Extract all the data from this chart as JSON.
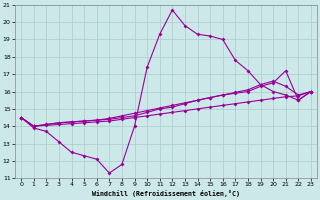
{
  "xlabel": "Windchill (Refroidissement éolien,°C)",
  "xlim": [
    -0.5,
    23.5
  ],
  "ylim": [
    11,
    21
  ],
  "xticks": [
    0,
    1,
    2,
    3,
    4,
    5,
    6,
    7,
    8,
    9,
    10,
    11,
    12,
    13,
    14,
    15,
    16,
    17,
    18,
    19,
    20,
    21,
    22,
    23
  ],
  "yticks": [
    11,
    12,
    13,
    14,
    15,
    16,
    17,
    18,
    19,
    20,
    21
  ],
  "background_color": "#cce8e8",
  "grid_color": "#aacccc",
  "line_color": "#990099",
  "line1_x": [
    0,
    1,
    2,
    3,
    4,
    5,
    6,
    7,
    8,
    9,
    10,
    11,
    12,
    13,
    14,
    15,
    16,
    17,
    18,
    19,
    20,
    21,
    22,
    23
  ],
  "line1_y": [
    14.5,
    13.9,
    13.7,
    13.1,
    12.5,
    12.3,
    12.1,
    11.3,
    11.8,
    14.0,
    17.4,
    19.3,
    20.7,
    19.8,
    19.3,
    19.2,
    19.0,
    17.8,
    17.2,
    16.4,
    16.0,
    15.8,
    15.5,
    16.0
  ],
  "line2_x": [
    0,
    1,
    2,
    3,
    4,
    5,
    6,
    7,
    8,
    9,
    10,
    11,
    12,
    13,
    14,
    15,
    16,
    17,
    18,
    19,
    20,
    21,
    22,
    23
  ],
  "line2_y": [
    14.5,
    14.0,
    14.1,
    14.2,
    14.25,
    14.3,
    14.35,
    14.4,
    14.5,
    14.6,
    14.8,
    15.0,
    15.1,
    15.3,
    15.5,
    15.65,
    15.8,
    15.9,
    16.0,
    16.3,
    16.5,
    17.2,
    15.5,
    16.0
  ],
  "line3_x": [
    0,
    1,
    2,
    3,
    4,
    5,
    6,
    7,
    8,
    9,
    10,
    11,
    12,
    13,
    14,
    15,
    16,
    17,
    18,
    19,
    20,
    21,
    22,
    23
  ],
  "line3_y": [
    14.5,
    14.0,
    14.1,
    14.2,
    14.25,
    14.3,
    14.35,
    14.45,
    14.6,
    14.75,
    14.9,
    15.05,
    15.2,
    15.35,
    15.5,
    15.65,
    15.8,
    15.95,
    16.1,
    16.4,
    16.6,
    16.3,
    15.8,
    16.0
  ],
  "line4_x": [
    0,
    1,
    2,
    3,
    4,
    5,
    6,
    7,
    8,
    9,
    10,
    11,
    12,
    13,
    14,
    15,
    16,
    17,
    18,
    19,
    20,
    21,
    22,
    23
  ],
  "line4_y": [
    14.5,
    14.0,
    14.05,
    14.1,
    14.15,
    14.2,
    14.25,
    14.3,
    14.4,
    14.5,
    14.6,
    14.7,
    14.8,
    14.9,
    15.0,
    15.1,
    15.2,
    15.3,
    15.4,
    15.5,
    15.6,
    15.7,
    15.75,
    16.0
  ]
}
